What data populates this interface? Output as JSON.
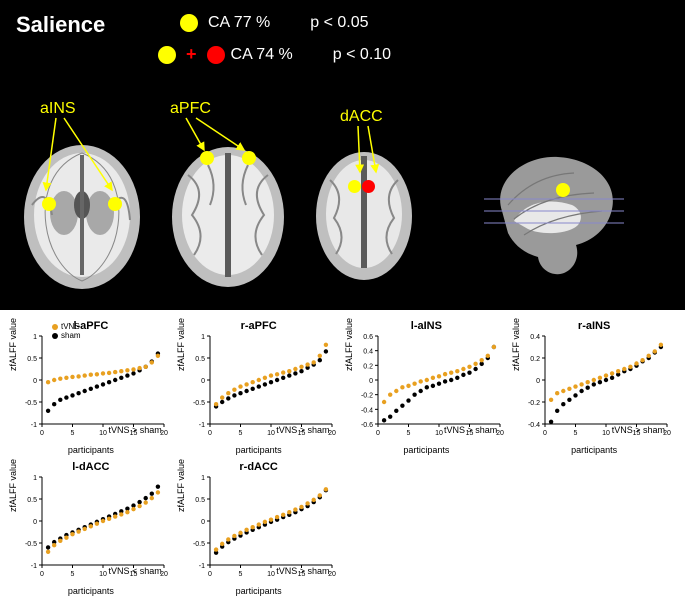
{
  "title": "Salience",
  "legend": {
    "row1": {
      "dots": [
        {
          "color": "#ffff00"
        }
      ],
      "ca": "CA 77 %",
      "p": "p < 0.05"
    },
    "row2": {
      "dots": [
        {
          "color": "#ffff00"
        },
        {
          "color": "#ff0000"
        }
      ],
      "ca": "CA 74 %",
      "p": "p < 0.10"
    }
  },
  "regions": {
    "aINS": "aINS",
    "aPFC": "aPFC",
    "dACC": "dACC"
  },
  "brain_colors": {
    "gray_light": "#c8c8c8",
    "gray_dark": "#6a6a6a",
    "white": "#f0f0f0",
    "bg": "#000000",
    "marker_yellow": "#ffff00",
    "marker_red": "#ff0000",
    "slice_line": "#8888cc"
  },
  "chart_style": {
    "tvns_color": "#e8a020",
    "sham_color": "#000000",
    "axis_color": "#000000",
    "marker_radius": 2.2,
    "font_size_title": 11,
    "font_size_axis": 9,
    "font_size_tick": 7,
    "xlabel": "participants",
    "ylabel": "zfALFF value",
    "xlim": [
      0,
      20
    ],
    "xticks": [
      0,
      5,
      10,
      15,
      20
    ],
    "legend_labels": {
      "tvns": "tVNS",
      "sham": "sham"
    }
  },
  "charts": [
    {
      "id": "l-aPFC",
      "title": "l-aPFC",
      "anno": "tVNS > sham",
      "ylim": [
        -1,
        1
      ],
      "yticks": [
        -1,
        -0.5,
        0,
        0.5,
        1
      ],
      "tvns": [
        -0.05,
        0.0,
        0.03,
        0.05,
        0.07,
        0.08,
        0.1,
        0.12,
        0.13,
        0.15,
        0.16,
        0.18,
        0.2,
        0.22,
        0.24,
        0.27,
        0.3,
        0.4,
        0.55
      ],
      "sham": [
        -0.7,
        -0.55,
        -0.45,
        -0.4,
        -0.35,
        -0.3,
        -0.25,
        -0.2,
        -0.15,
        -0.1,
        -0.05,
        0.0,
        0.05,
        0.1,
        0.15,
        0.22,
        0.3,
        0.42,
        0.6
      ]
    },
    {
      "id": "r-aPFC",
      "title": "r-aPFC",
      "anno": "tVNS > sham",
      "ylim": [
        -1,
        1
      ],
      "yticks": [
        -1,
        -0.5,
        0,
        0.5,
        1
      ],
      "tvns": [
        -0.55,
        -0.4,
        -0.3,
        -0.22,
        -0.15,
        -0.1,
        -0.05,
        0.0,
        0.05,
        0.1,
        0.13,
        0.17,
        0.2,
        0.25,
        0.3,
        0.35,
        0.4,
        0.55,
        0.8
      ],
      "sham": [
        -0.6,
        -0.5,
        -0.42,
        -0.35,
        -0.3,
        -0.25,
        -0.2,
        -0.15,
        -0.1,
        -0.05,
        0.0,
        0.05,
        0.1,
        0.15,
        0.2,
        0.28,
        0.35,
        0.45,
        0.65
      ]
    },
    {
      "id": "l-aINS",
      "title": "l-aINS",
      "anno": "tVNS > sham",
      "ylim": [
        -0.6,
        0.6
      ],
      "yticks": [
        -0.6,
        -0.4,
        -0.2,
        0,
        0.2,
        0.4,
        0.6
      ],
      "tvns": [
        -0.3,
        -0.2,
        -0.15,
        -0.1,
        -0.08,
        -0.05,
        -0.02,
        0.0,
        0.03,
        0.05,
        0.08,
        0.1,
        0.12,
        0.15,
        0.18,
        0.22,
        0.27,
        0.33,
        0.45
      ],
      "sham": [
        -0.55,
        -0.5,
        -0.42,
        -0.35,
        -0.28,
        -0.2,
        -0.15,
        -0.1,
        -0.08,
        -0.05,
        -0.02,
        0.0,
        0.03,
        0.07,
        0.1,
        0.15,
        0.22,
        0.3,
        0.45
      ]
    },
    {
      "id": "r-aINS",
      "title": "r-aINS",
      "anno": "tVNS > sham",
      "ylim": [
        -0.4,
        0.4
      ],
      "yticks": [
        -0.4,
        -0.2,
        0,
        0.2,
        0.4
      ],
      "tvns": [
        -0.18,
        -0.12,
        -0.1,
        -0.08,
        -0.06,
        -0.04,
        -0.02,
        0.0,
        0.02,
        0.04,
        0.06,
        0.08,
        0.1,
        0.12,
        0.15,
        0.18,
        0.22,
        0.26,
        0.32
      ],
      "sham": [
        -0.38,
        -0.28,
        -0.22,
        -0.18,
        -0.14,
        -0.1,
        -0.07,
        -0.04,
        -0.02,
        0.0,
        0.02,
        0.05,
        0.08,
        0.1,
        0.13,
        0.17,
        0.2,
        0.25,
        0.3
      ]
    },
    {
      "id": "l-dACC",
      "title": "l-dACC",
      "anno": "tVNS < sham",
      "ylim": [
        -1,
        1
      ],
      "yticks": [
        -1,
        -0.5,
        0,
        0.5,
        1
      ],
      "tvns": [
        -0.7,
        -0.55,
        -0.45,
        -0.38,
        -0.3,
        -0.24,
        -0.18,
        -0.12,
        -0.06,
        0.0,
        0.05,
        0.1,
        0.15,
        0.2,
        0.27,
        0.34,
        0.42,
        0.52,
        0.65
      ],
      "sham": [
        -0.6,
        -0.48,
        -0.4,
        -0.32,
        -0.26,
        -0.2,
        -0.14,
        -0.08,
        -0.02,
        0.04,
        0.1,
        0.16,
        0.22,
        0.28,
        0.35,
        0.43,
        0.52,
        0.62,
        0.78
      ]
    },
    {
      "id": "r-dACC",
      "title": "r-dACC",
      "anno": "tVNS > sham",
      "ylim": [
        -1,
        1
      ],
      "yticks": [
        -1,
        -0.5,
        0,
        0.5,
        1
      ],
      "tvns": [
        -0.65,
        -0.52,
        -0.42,
        -0.34,
        -0.27,
        -0.2,
        -0.14,
        -0.08,
        -0.02,
        0.03,
        0.09,
        0.14,
        0.2,
        0.26,
        0.32,
        0.4,
        0.48,
        0.58,
        0.72
      ],
      "sham": [
        -0.72,
        -0.58,
        -0.48,
        -0.4,
        -0.33,
        -0.26,
        -0.2,
        -0.14,
        -0.08,
        -0.02,
        0.03,
        0.09,
        0.14,
        0.2,
        0.27,
        0.34,
        0.43,
        0.54,
        0.7
      ]
    }
  ]
}
